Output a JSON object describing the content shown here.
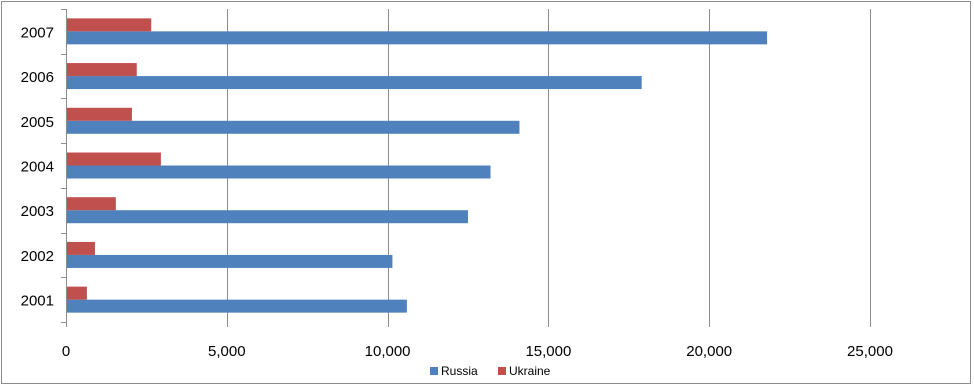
{
  "chart_data": {
    "type": "bar",
    "orientation": "horizontal",
    "categories": [
      "2001",
      "2002",
      "2003",
      "2004",
      "2005",
      "2006",
      "2007"
    ],
    "series": [
      {
        "name": "Russia",
        "color": "#4F81BD",
        "values": [
          10600,
          10150,
          12500,
          13200,
          14100,
          17900,
          21800
        ]
      },
      {
        "name": "Ukraine",
        "color": "#C0504D",
        "values": [
          650,
          900,
          1550,
          2950,
          2050,
          2200,
          2650
        ]
      }
    ],
    "x_ticks": [
      "0",
      "5,000",
      "10,000",
      "15,000",
      "20,000",
      "25,000"
    ],
    "xlim": [
      0,
      25000
    ],
    "grid": "vertical",
    "legend_position": "bottom",
    "title": "",
    "xlabel": "",
    "ylabel": ""
  }
}
